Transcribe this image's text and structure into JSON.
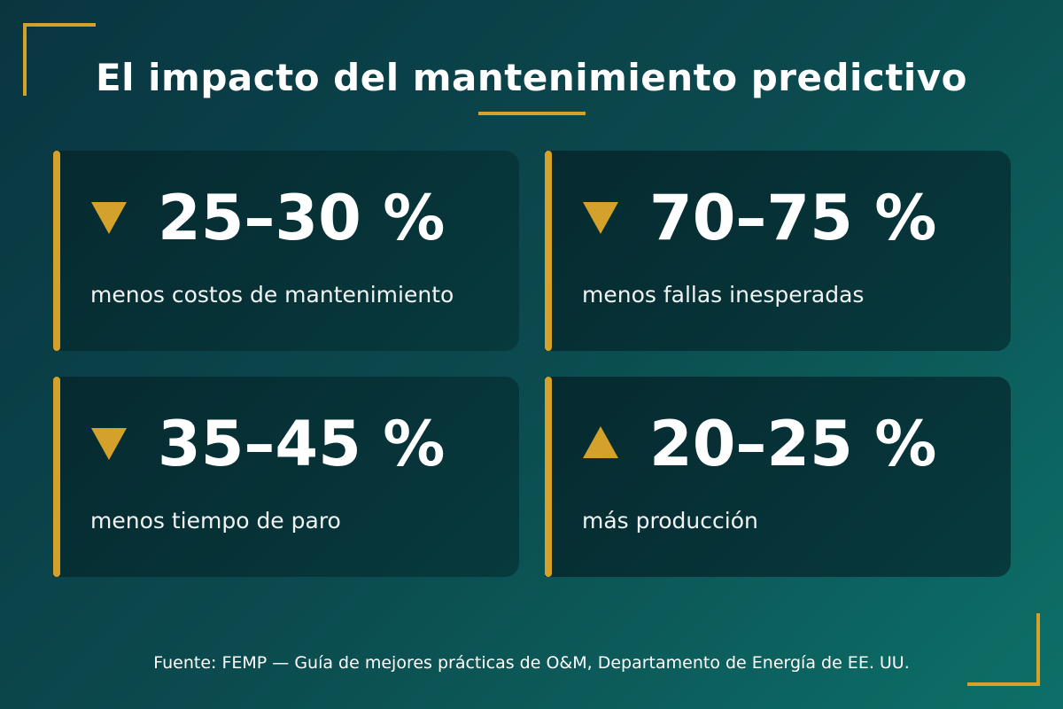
{
  "title": "El impacto del mantenimiento predictivo",
  "colors": {
    "accent": "#d4a22a",
    "background_start": "#0a3540",
    "background_end": "#0d7068",
    "card": "#062a30"
  },
  "cards": [
    {
      "value": "25–30 %",
      "label": "menos costos de mantenimiento",
      "direction": "down",
      "icon": "triangle-down-icon"
    },
    {
      "value": "70–75 %",
      "label": "menos fallas inesperadas",
      "direction": "down",
      "icon": "triangle-down-icon"
    },
    {
      "value": "35–45 %",
      "label": "menos tiempo de paro",
      "direction": "down",
      "icon": "triangle-down-icon"
    },
    {
      "value": "20–25 %",
      "label": "más producción",
      "direction": "up",
      "icon": "triangle-up-icon"
    }
  ],
  "source": "Fuente: FEMP — Guía de mejores prácticas de O&M, Departamento de Energía de EE. UU."
}
